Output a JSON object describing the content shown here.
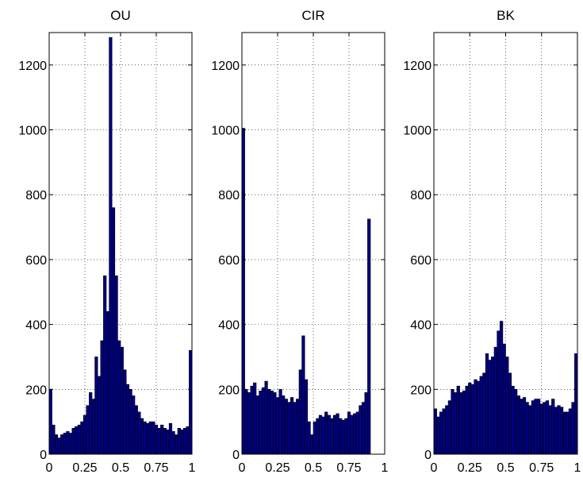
{
  "chart_data": [
    {
      "type": "bar",
      "title": "OU",
      "xlim": [
        0,
        1
      ],
      "ylim": [
        0,
        1300
      ],
      "xticks": [
        0,
        0.25,
        0.5,
        0.75,
        1
      ],
      "xtick_labels": [
        "0",
        "0.25",
        "0.5",
        "0.75",
        "1"
      ],
      "yticks": [
        0,
        200,
        400,
        600,
        800,
        1000,
        1200
      ],
      "ytick_labels": [
        "0",
        "200",
        "400",
        "600",
        "800",
        "1000",
        "1200"
      ],
      "grid": true,
      "color": "#00007f",
      "bin_count": 50,
      "values": [
        200,
        90,
        60,
        50,
        60,
        65,
        70,
        65,
        80,
        85,
        90,
        100,
        120,
        150,
        190,
        170,
        300,
        240,
        350,
        550,
        440,
        1285,
        760,
        550,
        350,
        330,
        260,
        215,
        200,
        180,
        150,
        130,
        110,
        100,
        95,
        100,
        100,
        90,
        80,
        90,
        80,
        75,
        95,
        70,
        60,
        80,
        75,
        80,
        85,
        320
      ]
    },
    {
      "type": "bar",
      "title": "CIR",
      "xlim": [
        0,
        1
      ],
      "ylim": [
        0,
        1300
      ],
      "xticks": [
        0,
        0.25,
        0.5,
        0.75,
        1
      ],
      "xtick_labels": [
        "0",
        "0.25",
        "0.5",
        "0.75",
        "1"
      ],
      "yticks": [
        0,
        200,
        400,
        600,
        800,
        1000,
        1200
      ],
      "ytick_labels": [
        "0",
        "200",
        "400",
        "600",
        "800",
        "1000",
        "1200"
      ],
      "grid": true,
      "color": "#00007f",
      "bin_count": 50,
      "values": [
        1005,
        200,
        190,
        210,
        220,
        180,
        195,
        205,
        225,
        200,
        195,
        190,
        175,
        200,
        180,
        170,
        160,
        175,
        160,
        170,
        260,
        365,
        230,
        100,
        60,
        100,
        110,
        120,
        115,
        130,
        120,
        110,
        120,
        125,
        110,
        105,
        110,
        130,
        120,
        125,
        130,
        150,
        160,
        190,
        725,
        0,
        0,
        0,
        0,
        0
      ]
    },
    {
      "type": "bar",
      "title": "BK",
      "xlim": [
        0,
        1
      ],
      "ylim": [
        0,
        1300
      ],
      "xticks": [
        0,
        0.25,
        0.5,
        0.75,
        1
      ],
      "xtick_labels": [
        "0",
        "0.25",
        "0.5",
        "0.75",
        "1"
      ],
      "yticks": [
        0,
        200,
        400,
        600,
        800,
        1000,
        1200
      ],
      "ytick_labels": [
        "0",
        "200",
        "400",
        "600",
        "800",
        "1000",
        "1200"
      ],
      "grid": true,
      "color": "#00007f",
      "bin_count": 50,
      "values": [
        140,
        115,
        130,
        140,
        150,
        165,
        200,
        190,
        210,
        190,
        195,
        210,
        220,
        215,
        230,
        225,
        240,
        250,
        310,
        290,
        300,
        330,
        380,
        410,
        340,
        300,
        250,
        210,
        200,
        180,
        170,
        175,
        160,
        150,
        165,
        170,
        170,
        155,
        160,
        165,
        150,
        170,
        145,
        150,
        145,
        130,
        130,
        140,
        160,
        310
      ]
    }
  ]
}
